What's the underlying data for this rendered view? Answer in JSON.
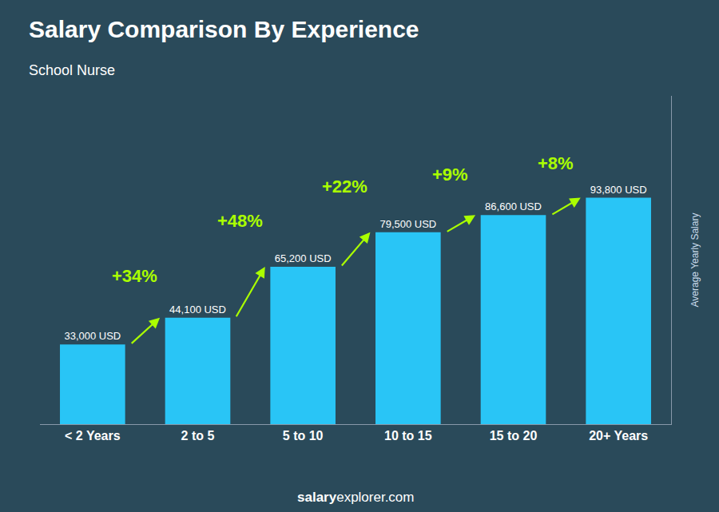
{
  "chart_data": {
    "type": "bar",
    "title": "Salary Comparison By Experience",
    "subtitle": "School Nurse",
    "ylabel": "Average Yearly Salary",
    "categories": [
      "< 2 Years",
      "2 to 5",
      "5 to 10",
      "10 to 15",
      "15 to 20",
      "20+ Years"
    ],
    "values": [
      33000,
      44100,
      65200,
      79500,
      86600,
      93800
    ],
    "value_labels": [
      "33,000 USD",
      "44,100 USD",
      "65,200 USD",
      "79,500 USD",
      "86,600 USD",
      "93,800 USD"
    ],
    "data_labels": true,
    "annotations": [
      "+34%",
      "+48%",
      "+22%",
      "+9%",
      "+8%"
    ],
    "watermark": [
      "salary",
      "explorer.com"
    ],
    "color": "#29c5f6",
    "ylim": [
      0,
      136010
    ],
    "yticks": [],
    "tick_labels": "x",
    "grid": false
  }
}
